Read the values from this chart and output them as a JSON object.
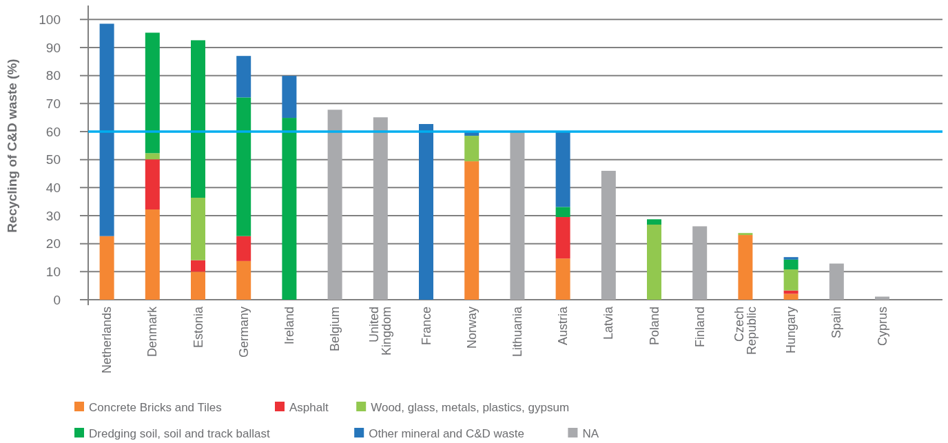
{
  "chart_data": {
    "type": "bar",
    "stacked": true,
    "ylabel": "Recycling of C&D waste (%)",
    "categories": [
      "Netherlands",
      "Denmark",
      "Estonia",
      "Germany",
      "Ireland",
      "Belgium",
      "United Kingdom",
      "France",
      "Norway",
      "Lithuania",
      "Austria",
      "Latvia",
      "Poland",
      "Finland",
      "Czech Republic",
      "Hungary",
      "Spain",
      "Cyprus"
    ],
    "series": [
      {
        "name": "Concrete Bricks and Tiles",
        "color": "#f58733",
        "values": [
          22.7,
          32.2,
          10,
          13.8,
          null,
          null,
          null,
          null,
          49.4,
          null,
          14.7,
          null,
          null,
          null,
          23.1,
          2.1,
          null,
          null
        ]
      },
      {
        "name": "Asphalt",
        "color": "#ec3237",
        "values": [
          null,
          17.9,
          4.1,
          8.9,
          null,
          null,
          null,
          null,
          null,
          null,
          14.8,
          null,
          null,
          null,
          null,
          1.2,
          null,
          null
        ]
      },
      {
        "name": "Wood, glass, metals, plastics, gypsum",
        "color": "#92c84f",
        "values": [
          null,
          2.2,
          22.3,
          null,
          null,
          null,
          null,
          null,
          9.1,
          null,
          null,
          null,
          26.8,
          null,
          0.7,
          7.5,
          null,
          null
        ]
      },
      {
        "name": "Dredging soil, soil and track ballast",
        "color": "#06ad50",
        "values": [
          null,
          43,
          56.2,
          49.5,
          64.9,
          null,
          null,
          null,
          null,
          null,
          3.6,
          null,
          1.9,
          null,
          null,
          3.5,
          null,
          null
        ]
      },
      {
        "name": "Other mineral and C&D waste",
        "color": "#2676bb",
        "values": [
          75.8,
          null,
          null,
          14.8,
          15,
          null,
          null,
          62.7,
          1.3,
          null,
          26.9,
          null,
          null,
          null,
          null,
          0.9,
          null,
          null
        ]
      },
      {
        "name": "NA",
        "color": "#a9aaad",
        "values": [
          null,
          null,
          null,
          null,
          null,
          67.8,
          65.1,
          null,
          null,
          60,
          null,
          46,
          null,
          26.2,
          null,
          null,
          12.9,
          1.1
        ]
      }
    ],
    "ylim": [
      0,
      105
    ],
    "yticks": [
      0,
      10,
      20,
      30,
      40,
      50,
      60,
      70,
      80,
      90,
      100
    ],
    "grid": "y",
    "legend": "bottom",
    "ref_lines": [
      {
        "axis": "y",
        "value": 60,
        "color": "#00aeef"
      }
    ]
  }
}
